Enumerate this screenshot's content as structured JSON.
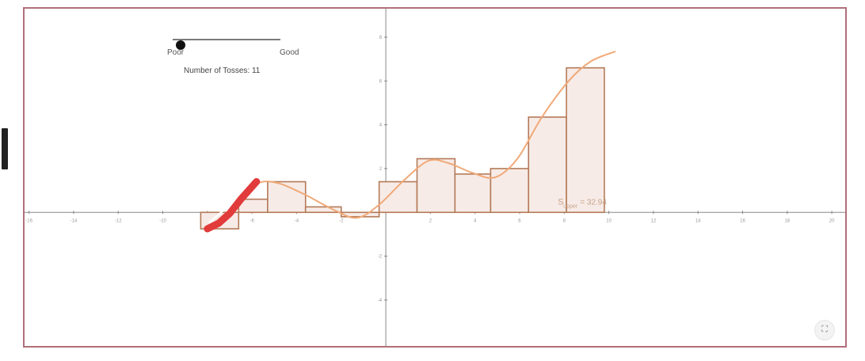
{
  "sidebar": {
    "strip_icon": "vertical-label-icon"
  },
  "slider": {
    "min_label": "Poor",
    "max_label": "Good",
    "level": 0.03
  },
  "status": {
    "tosses_text": "Number of Tosses: 11"
  },
  "area_label": {
    "prefix": "S",
    "subscript": "upper",
    "value_text": "= 32.94"
  },
  "fullscreen": {
    "icon": "fullscreen-icon",
    "glyph": "⛶"
  },
  "colors": {
    "bar_stroke": "#b47a58",
    "bar_fill": "#f7ebe7",
    "curve": "#f0a978",
    "pen": "#e23b3b",
    "frame": "#b0707a"
  },
  "chart_data": {
    "type": "bar",
    "xlim": [
      -16.2,
      20.6
    ],
    "ylim": [
      -6.1,
      9.3
    ],
    "x_ticks": [
      -16,
      -14,
      -12,
      -10,
      -8,
      -6,
      -4,
      -2,
      0,
      2,
      4,
      6,
      8,
      10,
      12,
      14,
      16,
      18,
      20
    ],
    "x_tick_labels": [
      "-16",
      "-14",
      "-12",
      "-10",
      "-8",
      "-6",
      "-4",
      "-2",
      "0",
      "2",
      "4",
      "6",
      "8",
      "10",
      "12",
      "14",
      "16",
      "18",
      "20"
    ],
    "y_ticks": [
      -4,
      -2,
      2,
      4,
      6,
      8
    ],
    "y_tick_labels": [
      "-4",
      "-2",
      "2",
      "4",
      "6",
      "8"
    ],
    "bars": [
      {
        "x0": -8.3,
        "x1": -6.6,
        "value": -0.75
      },
      {
        "x0": -6.6,
        "x1": -5.3,
        "value": 0.6
      },
      {
        "x0": -5.3,
        "x1": -3.6,
        "value": 1.4
      },
      {
        "x0": -3.6,
        "x1": -2.0,
        "value": 0.25
      },
      {
        "x0": -2.0,
        "x1": -0.3,
        "value": -0.2
      },
      {
        "x0": -0.3,
        "x1": 1.4,
        "value": 1.4
      },
      {
        "x0": 1.4,
        "x1": 3.1,
        "value": 2.45
      },
      {
        "x0": 3.1,
        "x1": 4.7,
        "value": 1.75
      },
      {
        "x0": 4.7,
        "x1": 6.4,
        "value": 2.0
      },
      {
        "x0": 6.4,
        "x1": 8.1,
        "value": 4.35
      },
      {
        "x0": 8.1,
        "x1": 9.8,
        "value": 6.6
      }
    ],
    "curve": [
      [
        -6.8,
        0.4
      ],
      [
        -5.8,
        1.3
      ],
      [
        -4.9,
        1.35
      ],
      [
        -3.7,
        0.85
      ],
      [
        -2.4,
        0.15
      ],
      [
        -1.3,
        -0.25
      ],
      [
        -0.3,
        0.35
      ],
      [
        0.8,
        1.45
      ],
      [
        1.9,
        2.35
      ],
      [
        2.8,
        2.25
      ],
      [
        3.9,
        1.8
      ],
      [
        4.9,
        1.6
      ],
      [
        5.9,
        2.45
      ],
      [
        7.0,
        4.35
      ],
      [
        8.2,
        6.0
      ],
      [
        9.2,
        6.9
      ],
      [
        10.3,
        7.35
      ]
    ],
    "pen_stroke": [
      [
        -8.0,
        -0.75
      ],
      [
        -7.5,
        -0.5
      ],
      [
        -7.0,
        -0.05
      ],
      [
        -6.5,
        0.6
      ],
      [
        -5.8,
        1.4
      ]
    ],
    "pen_highlight": [
      [
        -7.9,
        -0.45
      ],
      [
        -7.1,
        0.25
      ]
    ],
    "area_label_at": [
      8.0,
      0.35
    ]
  }
}
